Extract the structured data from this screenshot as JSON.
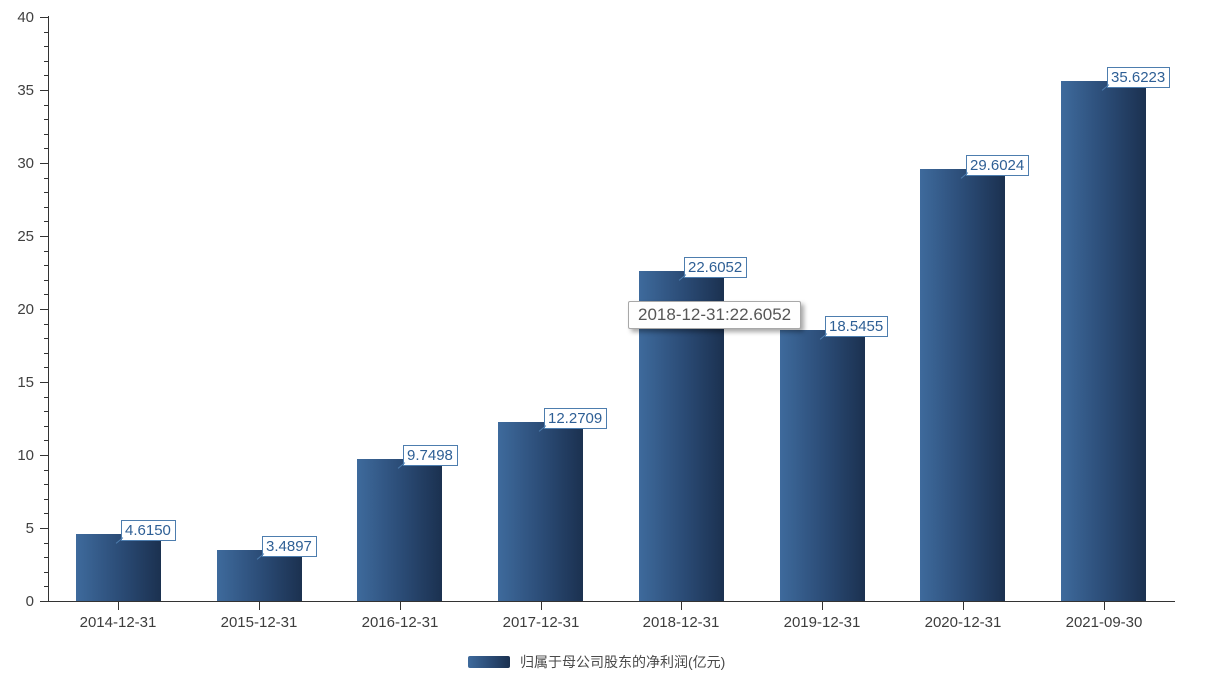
{
  "chart_data": {
    "type": "bar",
    "title": "",
    "categories": [
      "2014-12-31",
      "2015-12-31",
      "2016-12-31",
      "2017-12-31",
      "2018-12-31",
      "2019-12-31",
      "2020-12-31",
      "2021-09-30"
    ],
    "values": [
      4.615,
      3.4897,
      9.7498,
      12.2709,
      22.6052,
      18.5455,
      29.6024,
      35.6223
    ],
    "value_labels": [
      "4.6150",
      "3.4897",
      "9.7498",
      "12.2709",
      "22.6052",
      "18.5455",
      "29.6024",
      "35.6223"
    ],
    "series_name": "归属于母公司股东的净利润(亿元)",
    "xlabel": "",
    "ylabel": "",
    "ylim": [
      0,
      40
    ],
    "y_major_ticks": [
      0,
      5,
      10,
      15,
      20,
      25,
      30,
      35,
      40
    ],
    "y_minor_tick_interval": 1,
    "grid": false,
    "legend_position": "bottom-center",
    "tooltip": {
      "text": "2018-12-31:22.6052",
      "category": "2018-12-31",
      "value": 22.6052
    }
  },
  "colors": {
    "bar_gradient_left": "#3e6a9c",
    "bar_gradient_mid": "#2a4a74",
    "bar_gradient_right": "#1b3150",
    "value_label_text": "#2e5f95",
    "value_label_border": "#4d7dae",
    "axis": "#333333",
    "axis_text": "#404040",
    "tooltip_text": "#565656",
    "tooltip_border": "#a8a8a8",
    "legend_text": "#4a4a4a",
    "background": "#ffffff"
  }
}
